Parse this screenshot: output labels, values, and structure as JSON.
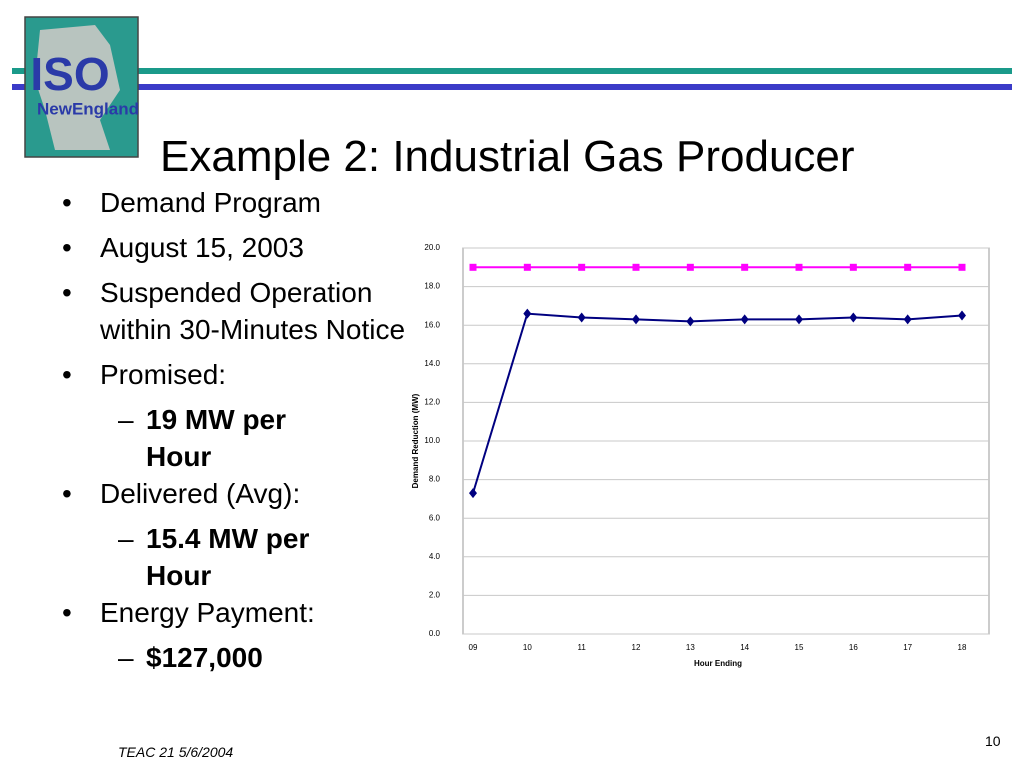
{
  "logo": {
    "top": "ISO",
    "bottom": "NewEngland"
  },
  "title": "Example 2: Industrial Gas Producer",
  "bullets": [
    {
      "text": "Demand Program"
    },
    {
      "text": "August 15, 2003"
    },
    {
      "text": "Suspended Operation within 30-Minutes Notice"
    },
    {
      "text": "Promised:",
      "sub": [
        "19 MW per Hour"
      ]
    },
    {
      "text": "Delivered (Avg):",
      "sub": [
        "15.4 MW per Hour"
      ]
    },
    {
      "text": "Energy Payment:",
      "sub": [
        "$127,000"
      ]
    }
  ],
  "chart_data": {
    "type": "line",
    "y_label": "Demand Reduction (MW)",
    "x_label": "Hour Ending",
    "categories": [
      "09",
      "10",
      "11",
      "12",
      "13",
      "14",
      "15",
      "16",
      "17",
      "18"
    ],
    "series": [
      {
        "color": "#ff00ff",
        "marker": "square",
        "values": [
          19.0,
          19.0,
          19.0,
          19.0,
          19.0,
          19.0,
          19.0,
          19.0,
          19.0,
          19.0
        ]
      },
      {
        "color": "#000080",
        "marker": "diamond",
        "values": [
          7.3,
          16.6,
          16.4,
          16.3,
          16.2,
          16.3,
          16.3,
          16.4,
          16.3,
          16.5
        ]
      }
    ],
    "ylim": [
      0,
      20
    ],
    "yticks": [
      {
        "value": 0,
        "label": "0.0"
      },
      {
        "value": 2,
        "label": "2.0"
      },
      {
        "value": 4,
        "label": "4.0"
      },
      {
        "value": 6,
        "label": "6.0"
      },
      {
        "value": 8,
        "label": "8.0"
      },
      {
        "value": 10,
        "label": "10.0"
      },
      {
        "value": 12,
        "label": "12.0"
      },
      {
        "value": 14,
        "label": "14.0"
      },
      {
        "value": 16,
        "label": "16.0"
      },
      {
        "value": 18,
        "label": "18.0"
      },
      {
        "value": 20,
        "label": "20.0"
      }
    ],
    "grid": true
  },
  "footer": "TEAC 21 5/6/2004",
  "page_number": "10"
}
